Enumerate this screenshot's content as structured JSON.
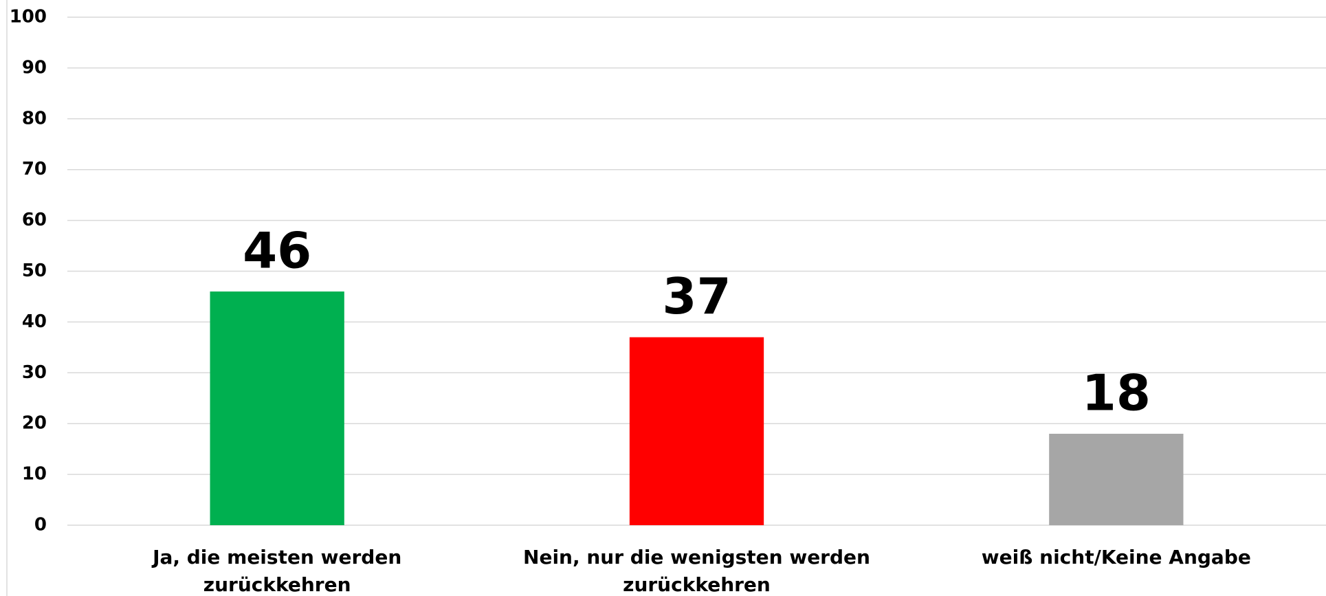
{
  "chart_data": {
    "type": "bar",
    "categories": [
      "Ja, die meisten werden zurückkehren",
      "Nein, nur die wenigsten werden zurückkehren",
      "weiß nicht/Keine Angabe"
    ],
    "values": [
      46,
      37,
      18
    ],
    "colors": [
      "#00b050",
      "#ff0000",
      "#a6a6a6"
    ],
    "ylim": [
      0,
      100
    ],
    "yticks": [
      0,
      10,
      20,
      30,
      40,
      50,
      60,
      70,
      80,
      90,
      100
    ],
    "grid": true
  }
}
